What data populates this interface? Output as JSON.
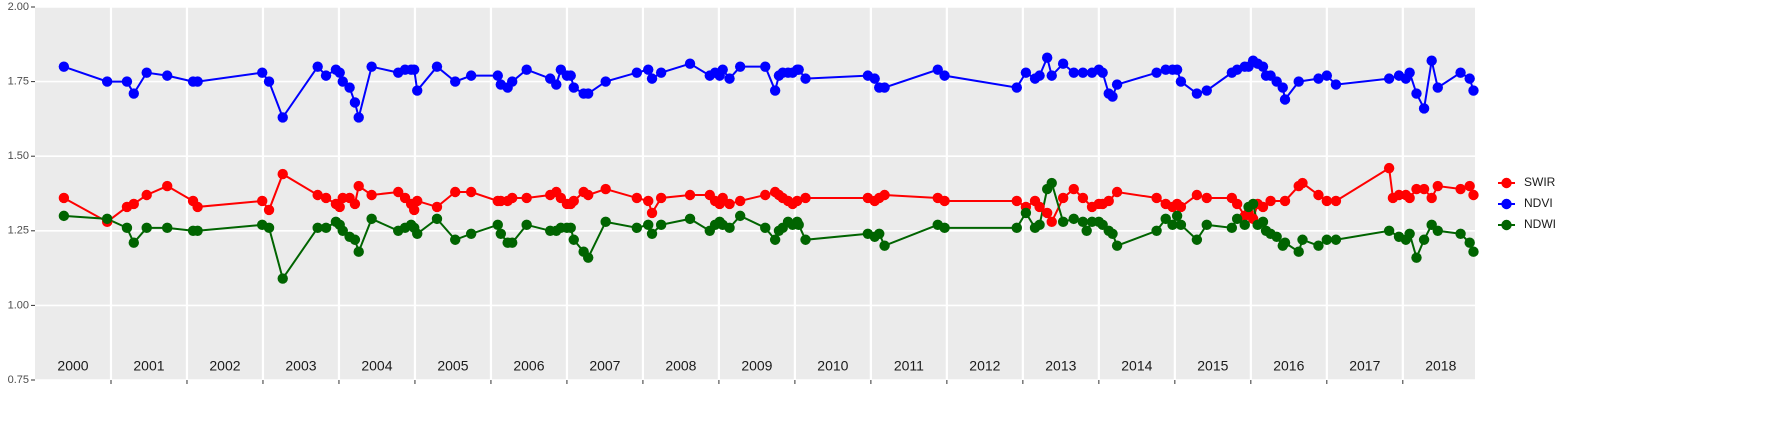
{
  "chart_data": {
    "type": "line",
    "xlim": [
      2000,
      2018.95
    ],
    "xticks": [
      2001,
      2002,
      2003,
      2004,
      2005,
      2006,
      2007,
      2008,
      2009,
      2010,
      2011,
      2012,
      2013,
      2014,
      2015,
      2016,
      2017,
      2018
    ],
    "year_labels": [
      2000,
      2001,
      2002,
      2003,
      2004,
      2005,
      2006,
      2007,
      2008,
      2009,
      2010,
      2011,
      2012,
      2013,
      2014,
      2015,
      2016,
      2017,
      2018
    ],
    "ylim": [
      0.75,
      2.0
    ],
    "yticks": [
      {
        "value": 0.75,
        "label": "0.75"
      },
      {
        "value": 1.0,
        "label": "1.00"
      },
      1.25,
      {
        "value": 1.5,
        "label": "1.50"
      },
      1.75,
      {
        "value": 2.0,
        "label": "2.00"
      }
    ],
    "grid": true,
    "legend": "right",
    "series": [
      {
        "name": "SWIR",
        "color": "#ff0000",
        "x": [
          2000.38,
          2000.95,
          2001.21,
          2001.3,
          2001.47,
          2001.74,
          2002.08,
          2002.14,
          2002.99,
          2003.08,
          2003.26,
          2003.72,
          2003.83,
          2003.96,
          2004.01,
          2004.05,
          2004.14,
          2004.21,
          2004.26,
          2004.43,
          2004.78,
          2004.87,
          2004.95,
          2004.99,
          2005.03,
          2005.29,
          2005.53,
          2005.74,
          2006.09,
          2006.13,
          2006.22,
          2006.28,
          2006.47,
          2006.78,
          2006.86,
          2006.92,
          2007.0,
          2007.05,
          2007.09,
          2007.22,
          2007.28,
          2007.51,
          2007.92,
          2008.07,
          2008.12,
          2008.24,
          2008.62,
          2008.88,
          2008.95,
          2009.01,
          2009.05,
          2009.14,
          2009.28,
          2009.61,
          2009.74,
          2009.79,
          2009.84,
          2009.91,
          2009.97,
          2010.03,
          2010.14,
          2010.96,
          2011.05,
          2011.11,
          2011.18,
          2011.88,
          2011.97,
          2012.92,
          2013.04,
          2013.16,
          2013.22,
          2013.32,
          2013.38,
          2013.53,
          2013.67,
          2013.79,
          2013.91,
          2014.0,
          2014.05,
          2014.13,
          2014.24,
          2014.76,
          2014.88,
          2014.97,
          2015.03,
          2015.08,
          2015.29,
          2015.42,
          2015.75,
          2015.82,
          2015.92,
          2015.97,
          2016.03,
          2016.09,
          2016.16,
          2016.26,
          2016.45,
          2016.63,
          2016.68,
          2016.89,
          2017.0,
          2017.12,
          2017.82,
          2017.87,
          2017.95,
          2018.04,
          2018.09,
          2018.18,
          2018.28,
          2018.38,
          2018.46,
          2018.76,
          2018.88,
          2018.93
        ],
        "values": [
          1.36,
          1.28,
          1.33,
          1.34,
          1.37,
          1.4,
          1.35,
          1.33,
          1.35,
          1.32,
          1.44,
          1.37,
          1.36,
          1.34,
          1.33,
          1.36,
          1.36,
          1.34,
          1.4,
          1.37,
          1.38,
          1.36,
          1.34,
          1.32,
          1.35,
          1.33,
          1.38,
          1.38,
          1.35,
          1.35,
          1.35,
          1.36,
          1.36,
          1.37,
          1.38,
          1.36,
          1.34,
          1.34,
          1.35,
          1.38,
          1.37,
          1.39,
          1.36,
          1.35,
          1.31,
          1.36,
          1.37,
          1.37,
          1.35,
          1.34,
          1.36,
          1.34,
          1.35,
          1.37,
          1.38,
          1.37,
          1.36,
          1.35,
          1.34,
          1.35,
          1.36,
          1.36,
          1.35,
          1.36,
          1.37,
          1.36,
          1.35,
          1.35,
          1.33,
          1.35,
          1.33,
          1.31,
          1.28,
          1.36,
          1.39,
          1.36,
          1.33,
          1.34,
          1.34,
          1.35,
          1.38,
          1.36,
          1.34,
          1.33,
          1.34,
          1.33,
          1.37,
          1.36,
          1.36,
          1.34,
          1.3,
          1.31,
          1.29,
          1.34,
          1.33,
          1.35,
          1.35,
          1.4,
          1.41,
          1.37,
          1.35,
          1.35,
          1.46,
          1.36,
          1.37,
          1.37,
          1.36,
          1.39,
          1.39,
          1.36,
          1.4,
          1.39,
          1.4,
          1.37
        ]
      },
      {
        "name": "NDVI",
        "color": "#0000ff",
        "x": [
          2000.38,
          2000.95,
          2001.21,
          2001.3,
          2001.47,
          2001.74,
          2002.08,
          2002.14,
          2002.99,
          2003.08,
          2003.26,
          2003.72,
          2003.83,
          2003.96,
          2004.01,
          2004.05,
          2004.14,
          2004.21,
          2004.26,
          2004.43,
          2004.78,
          2004.87,
          2004.95,
          2004.99,
          2005.03,
          2005.29,
          2005.53,
          2005.74,
          2006.09,
          2006.13,
          2006.22,
          2006.28,
          2006.47,
          2006.78,
          2006.86,
          2006.92,
          2007.0,
          2007.05,
          2007.09,
          2007.22,
          2007.28,
          2007.51,
          2007.92,
          2008.07,
          2008.12,
          2008.24,
          2008.62,
          2008.88,
          2008.95,
          2009.01,
          2009.05,
          2009.14,
          2009.28,
          2009.61,
          2009.74,
          2009.79,
          2009.84,
          2009.91,
          2009.97,
          2010.03,
          2010.05,
          2010.14,
          2010.96,
          2011.05,
          2011.11,
          2011.18,
          2011.88,
          2011.97,
          2012.92,
          2013.04,
          2013.16,
          2013.22,
          2013.32,
          2013.38,
          2013.53,
          2013.67,
          2013.79,
          2013.91,
          2014.0,
          2014.05,
          2014.13,
          2014.18,
          2014.24,
          2014.76,
          2014.88,
          2014.97,
          2015.03,
          2015.08,
          2015.29,
          2015.42,
          2015.75,
          2015.82,
          2015.92,
          2015.97,
          2016.03,
          2016.09,
          2016.16,
          2016.2,
          2016.26,
          2016.34,
          2016.42,
          2016.45,
          2016.63,
          2016.89,
          2017.0,
          2017.12,
          2017.82,
          2017.95,
          2018.04,
          2018.09,
          2018.18,
          2018.28,
          2018.38,
          2018.46,
          2018.76,
          2018.88,
          2018.93
        ],
        "values": [
          1.8,
          1.75,
          1.75,
          1.71,
          1.78,
          1.77,
          1.75,
          1.75,
          1.78,
          1.75,
          1.63,
          1.8,
          1.77,
          1.79,
          1.78,
          1.75,
          1.73,
          1.68,
          1.63,
          1.8,
          1.78,
          1.79,
          1.79,
          1.79,
          1.72,
          1.8,
          1.75,
          1.77,
          1.77,
          1.74,
          1.73,
          1.75,
          1.79,
          1.76,
          1.74,
          1.79,
          1.77,
          1.77,
          1.73,
          1.71,
          1.71,
          1.75,
          1.78,
          1.79,
          1.76,
          1.78,
          1.81,
          1.77,
          1.78,
          1.77,
          1.79,
          1.76,
          1.8,
          1.8,
          1.72,
          1.77,
          1.78,
          1.78,
          1.78,
          1.79,
          1.79,
          1.76,
          1.77,
          1.76,
          1.73,
          1.73,
          1.79,
          1.77,
          1.73,
          1.78,
          1.76,
          1.77,
          1.83,
          1.77,
          1.81,
          1.78,
          1.78,
          1.78,
          1.79,
          1.78,
          1.71,
          1.7,
          1.74,
          1.78,
          1.79,
          1.79,
          1.79,
          1.75,
          1.71,
          1.72,
          1.78,
          1.79,
          1.8,
          1.8,
          1.82,
          1.81,
          1.8,
          1.77,
          1.77,
          1.75,
          1.73,
          1.69,
          1.75,
          1.76,
          1.77,
          1.74,
          1.76,
          1.77,
          1.76,
          1.78,
          1.71,
          1.66,
          1.82,
          1.73,
          1.78,
          1.76,
          1.72
        ]
      },
      {
        "name": "NDWI",
        "color": "#006400",
        "x": [
          2000.38,
          2000.95,
          2001.21,
          2001.3,
          2001.47,
          2001.74,
          2002.08,
          2002.14,
          2002.99,
          2003.08,
          2003.26,
          2003.72,
          2003.83,
          2003.96,
          2004.01,
          2004.05,
          2004.14,
          2004.21,
          2004.26,
          2004.43,
          2004.78,
          2004.87,
          2004.95,
          2004.99,
          2005.03,
          2005.29,
          2005.53,
          2005.74,
          2006.09,
          2006.13,
          2006.22,
          2006.28,
          2006.47,
          2006.78,
          2006.86,
          2006.92,
          2007.0,
          2007.05,
          2007.09,
          2007.22,
          2007.28,
          2007.51,
          2007.92,
          2008.07,
          2008.12,
          2008.24,
          2008.62,
          2008.88,
          2008.95,
          2009.01,
          2009.05,
          2009.14,
          2009.28,
          2009.61,
          2009.74,
          2009.79,
          2009.84,
          2009.91,
          2009.97,
          2010.03,
          2010.05,
          2010.14,
          2010.96,
          2011.05,
          2011.11,
          2011.18,
          2011.88,
          2011.97,
          2012.92,
          2013.04,
          2013.16,
          2013.22,
          2013.32,
          2013.38,
          2013.53,
          2013.67,
          2013.79,
          2013.84,
          2013.91,
          2014.0,
          2014.05,
          2014.13,
          2014.18,
          2014.24,
          2014.76,
          2014.88,
          2014.97,
          2015.03,
          2015.08,
          2015.29,
          2015.42,
          2015.75,
          2015.82,
          2015.92,
          2015.97,
          2016.03,
          2016.09,
          2016.16,
          2016.2,
          2016.26,
          2016.34,
          2016.42,
          2016.45,
          2016.63,
          2016.68,
          2016.89,
          2017.0,
          2017.12,
          2017.82,
          2017.95,
          2018.04,
          2018.09,
          2018.18,
          2018.28,
          2018.38,
          2018.46,
          2018.76,
          2018.88,
          2018.93
        ],
        "values": [
          1.3,
          1.29,
          1.26,
          1.21,
          1.26,
          1.26,
          1.25,
          1.25,
          1.27,
          1.26,
          1.09,
          1.26,
          1.26,
          1.28,
          1.27,
          1.25,
          1.23,
          1.22,
          1.18,
          1.29,
          1.25,
          1.26,
          1.27,
          1.26,
          1.24,
          1.29,
          1.22,
          1.24,
          1.27,
          1.24,
          1.21,
          1.21,
          1.27,
          1.25,
          1.25,
          1.26,
          1.26,
          1.26,
          1.22,
          1.18,
          1.16,
          1.28,
          1.26,
          1.27,
          1.24,
          1.27,
          1.29,
          1.25,
          1.27,
          1.28,
          1.27,
          1.26,
          1.3,
          1.26,
          1.22,
          1.25,
          1.26,
          1.28,
          1.27,
          1.28,
          1.27,
          1.22,
          1.24,
          1.23,
          1.24,
          1.2,
          1.27,
          1.26,
          1.26,
          1.31,
          1.26,
          1.27,
          1.39,
          1.41,
          1.28,
          1.29,
          1.28,
          1.25,
          1.28,
          1.28,
          1.27,
          1.25,
          1.24,
          1.2,
          1.25,
          1.29,
          1.27,
          1.3,
          1.27,
          1.22,
          1.27,
          1.26,
          1.29,
          1.27,
          1.33,
          1.34,
          1.27,
          1.28,
          1.25,
          1.24,
          1.23,
          1.2,
          1.21,
          1.18,
          1.22,
          1.2,
          1.22,
          1.22,
          1.25,
          1.23,
          1.22,
          1.24,
          1.16,
          1.22,
          1.27,
          1.25,
          1.24,
          1.21,
          1.18
        ]
      }
    ]
  }
}
